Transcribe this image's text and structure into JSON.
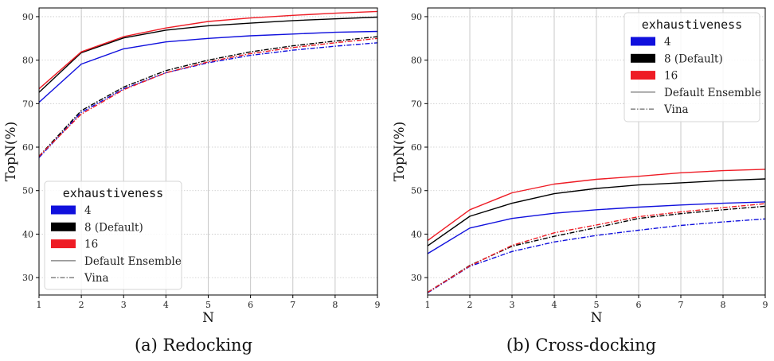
{
  "chart_data": [
    {
      "type": "line",
      "caption": "(a) Redocking",
      "xlabel": "N",
      "ylabel": "TopN(%)",
      "xlim": [
        1,
        9
      ],
      "ylim": [
        26,
        92
      ],
      "x": [
        1,
        2,
        3,
        4,
        5,
        6,
        7,
        8,
        9
      ],
      "xticks": [
        "1",
        "2",
        "3",
        "4",
        "5",
        "6",
        "7",
        "8",
        "9"
      ],
      "yticks": [
        30,
        40,
        50,
        60,
        70,
        80,
        90
      ],
      "grid": true,
      "legend_placement": "lower-left",
      "legend": {
        "title": "exhaustiveness",
        "entries": [
          "4",
          "8 (Default)",
          "16",
          "Default Ensemble",
          "Vina"
        ]
      },
      "series": [
        {
          "exhaustiveness": "4",
          "method": "Default Ensemble",
          "color": "#1010dd",
          "style": "solid",
          "values": [
            70.3,
            79.1,
            82.6,
            84.2,
            85.0,
            85.6,
            86.0,
            86.4,
            86.6
          ]
        },
        {
          "exhaustiveness": "8 (Default)",
          "method": "Default Ensemble",
          "color": "#000000",
          "style": "solid",
          "values": [
            72.6,
            81.7,
            85.1,
            86.9,
            87.9,
            88.5,
            89.1,
            89.5,
            89.9
          ]
        },
        {
          "exhaustiveness": "16",
          "method": "Default Ensemble",
          "color": "#ee1c25",
          "style": "solid",
          "values": [
            73.4,
            81.9,
            85.4,
            87.4,
            88.9,
            89.7,
            90.3,
            90.8,
            91.2
          ]
        },
        {
          "exhaustiveness": "4",
          "method": "Vina",
          "color": "#1010dd",
          "style": "dashdot",
          "values": [
            57.6,
            68.0,
            73.4,
            77.1,
            79.4,
            81.1,
            82.3,
            83.2,
            84.0
          ]
        },
        {
          "exhaustiveness": "8 (Default)",
          "method": "Vina",
          "color": "#000000",
          "style": "dashdot",
          "values": [
            57.9,
            68.4,
            73.8,
            77.6,
            80.0,
            81.9,
            83.3,
            84.4,
            85.4
          ]
        },
        {
          "exhaustiveness": "16",
          "method": "Vina",
          "color": "#ee1c25",
          "style": "dashdot",
          "values": [
            57.9,
            67.6,
            73.2,
            77.1,
            79.6,
            81.5,
            82.9,
            84.0,
            85.0
          ]
        }
      ]
    },
    {
      "type": "line",
      "caption": "(b) Cross-docking",
      "xlabel": "N",
      "ylabel": "TopN(%)",
      "xlim": [
        1,
        9
      ],
      "ylim": [
        26,
        92
      ],
      "x": [
        1,
        2,
        3,
        4,
        5,
        6,
        7,
        8,
        9
      ],
      "xticks": [
        "1",
        "2",
        "3",
        "4",
        "5",
        "6",
        "7",
        "8",
        "9"
      ],
      "yticks": [
        30,
        40,
        50,
        60,
        70,
        80,
        90
      ],
      "grid": true,
      "legend_placement": "upper-right",
      "legend": {
        "title": "exhaustiveness",
        "entries": [
          "4",
          "8 (Default)",
          "16",
          "Default Ensemble",
          "Vina"
        ]
      },
      "series": [
        {
          "exhaustiveness": "4",
          "method": "Default Ensemble",
          "color": "#1010dd",
          "style": "solid",
          "values": [
            35.5,
            41.4,
            43.6,
            44.8,
            45.6,
            46.2,
            46.7,
            47.1,
            47.4
          ]
        },
        {
          "exhaustiveness": "8 (Default)",
          "method": "Default Ensemble",
          "color": "#000000",
          "style": "solid",
          "values": [
            37.3,
            44.1,
            47.1,
            49.3,
            50.5,
            51.3,
            51.8,
            52.3,
            52.7
          ]
        },
        {
          "exhaustiveness": "16",
          "method": "Default Ensemble",
          "color": "#ee1c25",
          "style": "solid",
          "values": [
            38.5,
            45.6,
            49.5,
            51.5,
            52.6,
            53.3,
            54.1,
            54.6,
            54.9
          ]
        },
        {
          "exhaustiveness": "4",
          "method": "Vina",
          "color": "#1010dd",
          "style": "dashdot",
          "values": [
            26.5,
            32.6,
            36.0,
            38.2,
            39.7,
            40.9,
            42.0,
            42.8,
            43.5
          ]
        },
        {
          "exhaustiveness": "8 (Default)",
          "method": "Vina",
          "color": "#000000",
          "style": "dashdot",
          "values": [
            26.6,
            32.8,
            37.2,
            39.5,
            41.5,
            43.6,
            44.7,
            45.6,
            46.4
          ]
        },
        {
          "exhaustiveness": "16",
          "method": "Vina",
          "color": "#ee1c25",
          "style": "dashdot",
          "values": [
            26.6,
            32.7,
            37.4,
            40.3,
            42.1,
            44.0,
            45.1,
            46.1,
            47.0
          ]
        }
      ]
    }
  ]
}
